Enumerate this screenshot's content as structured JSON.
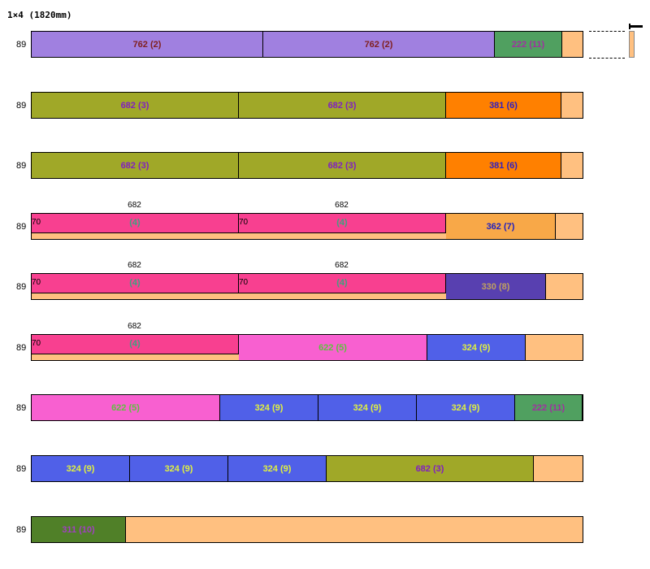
{
  "title": "1×4 (1820mm)",
  "board_length_mm": 1820,
  "rows": [
    {
      "height_label": "89",
      "pieces": [
        {
          "length": 762,
          "label": "762 (2)",
          "color": "#a080e0",
          "text_color": "#802020",
          "ripped": false
        },
        {
          "length": 762,
          "label": "762 (2)",
          "color": "#a080e0",
          "text_color": "#802020",
          "ripped": false
        },
        {
          "length": 222,
          "label": "222 (11)",
          "color": "#50a060",
          "text_color": "#a030a0",
          "ripped": false
        }
      ]
    },
    {
      "height_label": "89",
      "pieces": [
        {
          "length": 682,
          "label": "682 (3)",
          "color": "#a0a828",
          "text_color": "#8020c0",
          "ripped": false
        },
        {
          "length": 682,
          "label": "682 (3)",
          "color": "#a0a828",
          "text_color": "#8020c0",
          "ripped": false
        },
        {
          "length": 381,
          "label": "381 (6)",
          "color": "#ff8000",
          "text_color": "#3020c0",
          "ripped": false
        }
      ]
    },
    {
      "height_label": "89",
      "pieces": [
        {
          "length": 682,
          "label": "682 (3)",
          "color": "#a0a828",
          "text_color": "#8020c0",
          "ripped": false
        },
        {
          "length": 682,
          "label": "682 (3)",
          "color": "#a0a828",
          "text_color": "#8020c0",
          "ripped": false
        },
        {
          "length": 381,
          "label": "381 (6)",
          "color": "#ff8000",
          "text_color": "#3020c0",
          "ripped": false
        }
      ]
    },
    {
      "height_label": "89",
      "pieces": [
        {
          "length": 682,
          "label": "(4)",
          "above": "682",
          "width_mark": "70",
          "color": "#f84090",
          "text_color": "#40a080",
          "ripped": true
        },
        {
          "length": 682,
          "label": "(4)",
          "above": "682",
          "width_mark": "70",
          "color": "#f84090",
          "text_color": "#40a080",
          "ripped": true
        },
        {
          "length": 362,
          "label": "362 (7)",
          "color": "#f8a848",
          "text_color": "#2020c0",
          "ripped": false
        }
      ]
    },
    {
      "height_label": "89",
      "pieces": [
        {
          "length": 682,
          "label": "(4)",
          "above": "682",
          "width_mark": "70",
          "color": "#f84090",
          "text_color": "#40a080",
          "ripped": true
        },
        {
          "length": 682,
          "label": "(4)",
          "above": "682",
          "width_mark": "70",
          "color": "#f84090",
          "text_color": "#40a080",
          "ripped": true
        },
        {
          "length": 330,
          "label": "330 (8)",
          "color": "#5840b0",
          "text_color": "#c0a060",
          "ripped": false
        }
      ]
    },
    {
      "height_label": "89",
      "pieces": [
        {
          "length": 682,
          "label": "(4)",
          "above": "682",
          "width_mark": "70",
          "color": "#f84090",
          "text_color": "#40a080",
          "ripped": true
        },
        {
          "length": 622,
          "label": "622 (5)",
          "color": "#f860d0",
          "text_color": "#60c040",
          "ripped": false
        },
        {
          "length": 324,
          "label": "324 (9)",
          "color": "#5060e8",
          "text_color": "#e0f040",
          "ripped": false
        }
      ]
    },
    {
      "height_label": "89",
      "pieces": [
        {
          "length": 622,
          "label": "622 (5)",
          "color": "#f860d0",
          "text_color": "#60c040",
          "ripped": false
        },
        {
          "length": 324,
          "label": "324 (9)",
          "color": "#5060e8",
          "text_color": "#e0f040",
          "ripped": false
        },
        {
          "length": 324,
          "label": "324 (9)",
          "color": "#5060e8",
          "text_color": "#e0f040",
          "ripped": false
        },
        {
          "length": 324,
          "label": "324 (9)",
          "color": "#5060e8",
          "text_color": "#e0f040",
          "ripped": false
        },
        {
          "length": 222,
          "label": "222 (11)",
          "color": "#50a060",
          "text_color": "#a030a0",
          "ripped": false
        }
      ]
    },
    {
      "height_label": "89",
      "pieces": [
        {
          "length": 324,
          "label": "324 (9)",
          "color": "#5060e8",
          "text_color": "#e0f040",
          "ripped": false
        },
        {
          "length": 324,
          "label": "324 (9)",
          "color": "#5060e8",
          "text_color": "#e0f040",
          "ripped": false
        },
        {
          "length": 324,
          "label": "324 (9)",
          "color": "#5060e8",
          "text_color": "#e0f040",
          "ripped": false
        },
        {
          "length": 682,
          "label": "682 (3)",
          "color": "#a0a828",
          "text_color": "#8020c0",
          "ripped": false
        }
      ]
    },
    {
      "height_label": "89",
      "pieces": [
        {
          "length": 311,
          "label": "311 (10)",
          "color": "#508028",
          "text_color": "#a040c0",
          "ripped": false
        }
      ]
    }
  ],
  "colors": {
    "offcut": "#ffc080"
  }
}
